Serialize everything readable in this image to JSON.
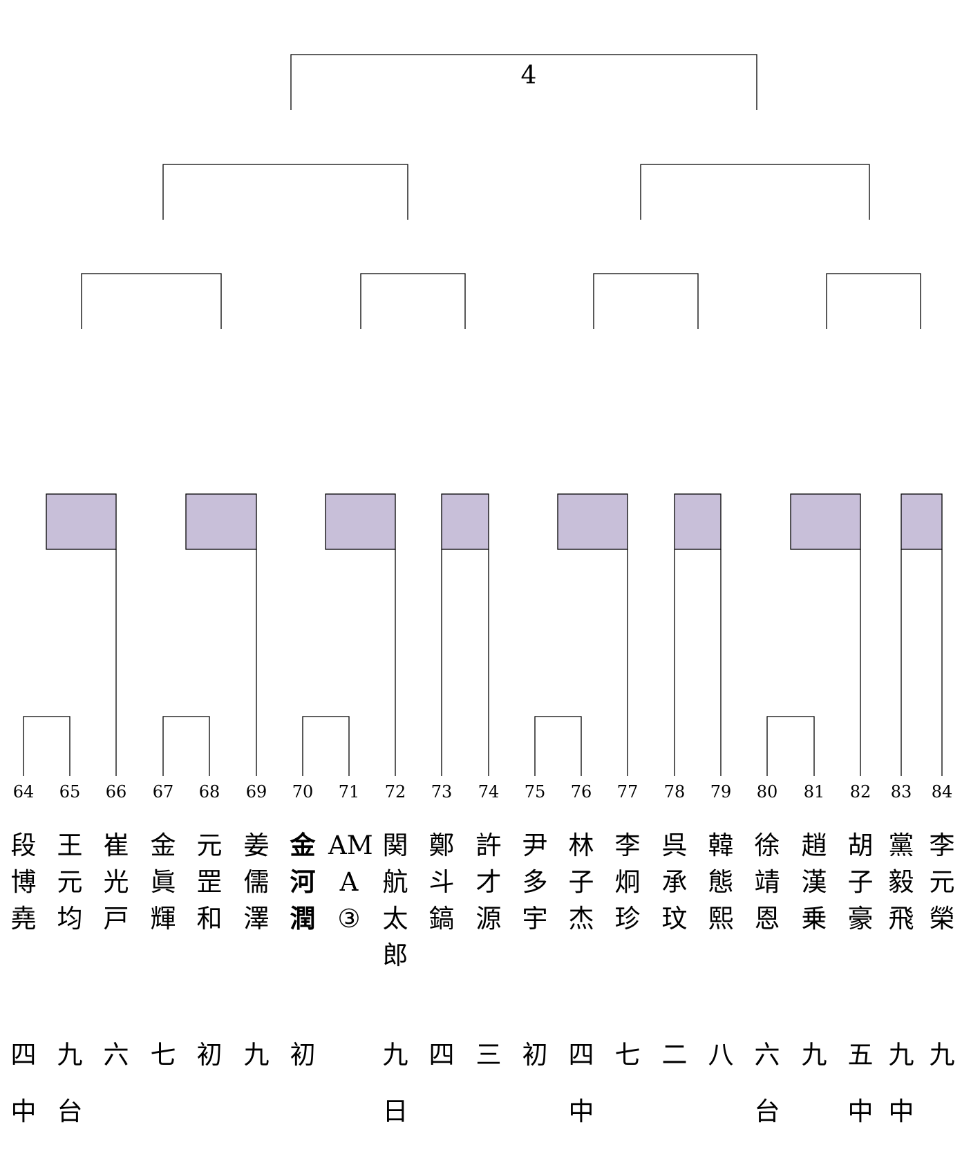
{
  "final_label": "4",
  "colors": {
    "line": "#000000",
    "highlight": "#c8bfd9"
  },
  "players": [
    {
      "num": "64",
      "name": "段博堯",
      "rank": "四",
      "affil": "中",
      "bold": false
    },
    {
      "num": "65",
      "name": "王元均",
      "rank": "九",
      "affil": "台",
      "bold": false
    },
    {
      "num": "66",
      "name": "崔光戸",
      "rank": "六",
      "affil": "",
      "bold": false
    },
    {
      "num": "67",
      "name": "金眞輝",
      "rank": "七",
      "affil": "",
      "bold": false
    },
    {
      "num": "68",
      "name": "元罡和",
      "rank": "初",
      "affil": "",
      "bold": false
    },
    {
      "num": "69",
      "name": "姜儒澤",
      "rank": "九",
      "affil": "",
      "bold": false
    },
    {
      "num": "70",
      "name": "金河潤",
      "rank": "初",
      "affil": "",
      "bold": true
    },
    {
      "num": "71",
      "name": "AMA③",
      "rank": "",
      "affil": "",
      "bold": false
    },
    {
      "num": "72",
      "name": "関航太郎",
      "rank": "九",
      "affil": "日",
      "bold": false
    },
    {
      "num": "73",
      "name": "鄭斗鎬",
      "rank": "四",
      "affil": "",
      "bold": false
    },
    {
      "num": "74",
      "name": "許才源",
      "rank": "三",
      "affil": "",
      "bold": false
    },
    {
      "num": "75",
      "name": "尹多宇",
      "rank": "初",
      "affil": "",
      "bold": false
    },
    {
      "num": "76",
      "name": "林子杰",
      "rank": "四",
      "affil": "中",
      "bold": false
    },
    {
      "num": "77",
      "name": "李炯珍",
      "rank": "七",
      "affil": "",
      "bold": false
    },
    {
      "num": "78",
      "name": "呉承玟",
      "rank": "二",
      "affil": "",
      "bold": false
    },
    {
      "num": "79",
      "name": "韓態熙",
      "rank": "八",
      "affil": "",
      "bold": false
    },
    {
      "num": "80",
      "name": "徐靖恩",
      "rank": "六",
      "affil": "台",
      "bold": false
    },
    {
      "num": "81",
      "name": "趙漢乗",
      "rank": "九",
      "affil": "",
      "bold": false
    },
    {
      "num": "82",
      "name": "胡子豪",
      "rank": "五",
      "affil": "中",
      "bold": false
    },
    {
      "num": "83",
      "name": "黨毅飛",
      "rank": "九",
      "affil": "中",
      "bold": false
    },
    {
      "num": "84",
      "name": "李元榮",
      "rank": "九",
      "affil": "",
      "bold": false
    }
  ]
}
